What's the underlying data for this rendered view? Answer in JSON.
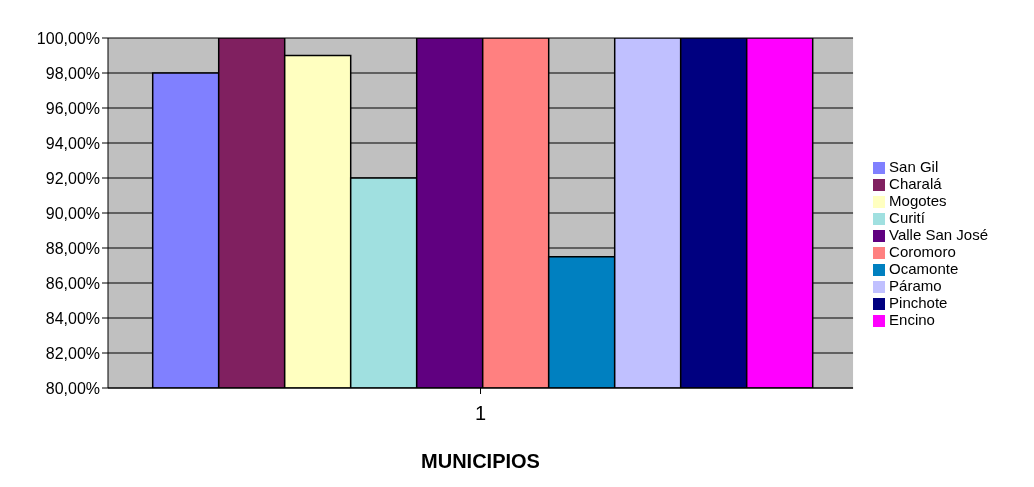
{
  "chart_data": {
    "type": "bar",
    "xlabel": "MUNICIPIOS",
    "categories": [
      "1"
    ],
    "series": [
      {
        "name": "San Gil",
        "color": "#8080ff",
        "values": [
          98
        ]
      },
      {
        "name": "Charalá",
        "color": "#802060",
        "values": [
          100
        ]
      },
      {
        "name": "Mogotes",
        "color": "#ffffc0",
        "values": [
          99
        ]
      },
      {
        "name": "Curití",
        "color": "#a0e0e0",
        "values": [
          92
        ]
      },
      {
        "name": "Valle San José",
        "color": "#600080",
        "values": [
          100
        ]
      },
      {
        "name": "Coromoro",
        "color": "#ff8080",
        "values": [
          100
        ]
      },
      {
        "name": "Ocamonte",
        "color": "#0080c0",
        "values": [
          87.5
        ]
      },
      {
        "name": "Páramo",
        "color": "#c0c0ff",
        "values": [
          100
        ]
      },
      {
        "name": "Pinchote",
        "color": "#000080",
        "values": [
          100
        ]
      },
      {
        "name": "Encino",
        "color": "#ff00ff",
        "values": [
          100
        ]
      }
    ],
    "ylim": [
      80,
      100
    ],
    "yticks": [
      {
        "value": 80,
        "label": "80,00%"
      },
      {
        "value": 82,
        "label": "82,00%"
      },
      {
        "value": 84,
        "label": "84,00%"
      },
      {
        "value": 86,
        "label": "86,00%"
      },
      {
        "value": 88,
        "label": "88,00%"
      },
      {
        "value": 90,
        "label": "90,00%"
      },
      {
        "value": 92,
        "label": "92,00%"
      },
      {
        "value": 94,
        "label": "94,00%"
      },
      {
        "value": 96,
        "label": "96,00%"
      },
      {
        "value": 98,
        "label": "98,00%"
      },
      {
        "value": 100,
        "label": "100,00%"
      }
    ],
    "grid": "y",
    "legend": "right"
  }
}
